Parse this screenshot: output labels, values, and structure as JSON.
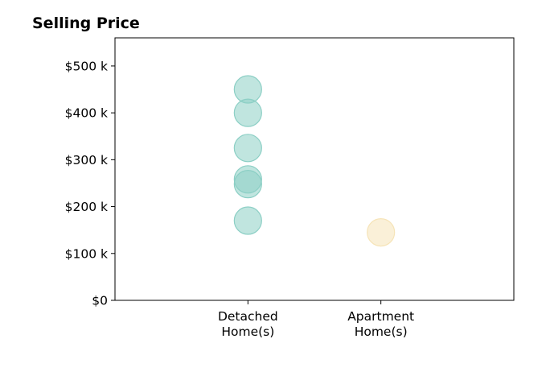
{
  "chart_data": {
    "type": "scatter",
    "title": "Selling Price",
    "xlabel": "",
    "ylabel": "",
    "categories": [
      "Detached\nHome(s)",
      "Apartment\nHome(s)"
    ],
    "xlim": [
      -1,
      2
    ],
    "ylim": [
      0,
      560000
    ],
    "yticks": [
      0,
      100000,
      200000,
      300000,
      400000,
      500000
    ],
    "ytick_labels": [
      "$0",
      "$100 k",
      "$200 k",
      "$300 k",
      "$400 k",
      "$500 k"
    ],
    "grid": false,
    "legend": "none",
    "series": [
      {
        "category_index": 0,
        "color": "#8ccfc5",
        "values": [
          450000,
          400000,
          325000,
          258000,
          248000,
          170000
        ]
      },
      {
        "category_index": 1,
        "color": "#f6e4b8",
        "values": [
          145000
        ]
      }
    ]
  }
}
